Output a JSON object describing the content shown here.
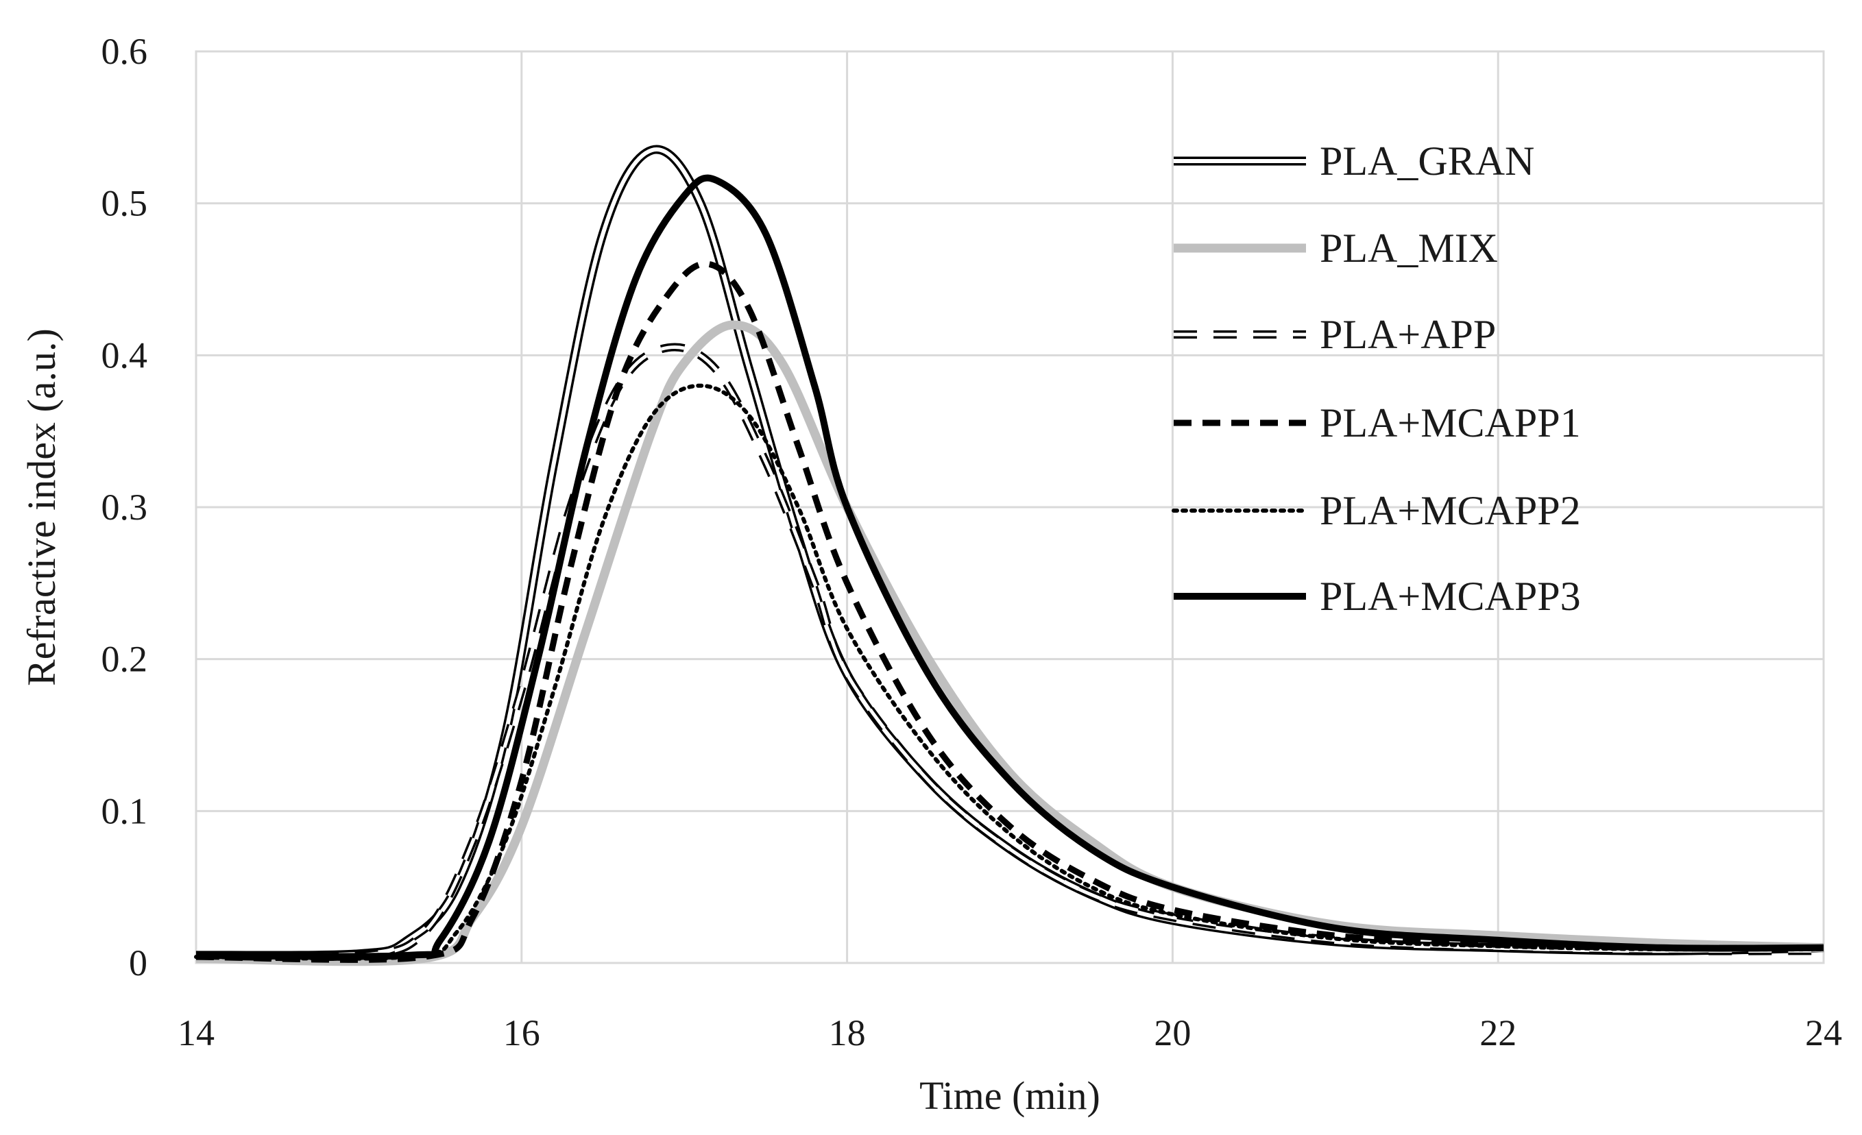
{
  "chart_data": {
    "type": "line",
    "title": "",
    "xlabel": "Time (min)",
    "ylabel": "Refractive index (a.u.)",
    "xlim": [
      14,
      24
    ],
    "ylim": [
      0,
      0.6
    ],
    "x_ticks": [
      14,
      16,
      18,
      20,
      22,
      24
    ],
    "y_ticks": [
      0,
      0.1,
      0.2,
      0.3,
      0.4,
      0.5,
      0.6
    ],
    "x_tick_labels": [
      "14",
      "16",
      "18",
      "20",
      "22",
      "24"
    ],
    "y_tick_labels": [
      "0",
      "0.1",
      "0.2",
      "0.3",
      "0.4",
      "0.5",
      "0.6"
    ],
    "grid": true,
    "legend_position": "top-right",
    "series": [
      {
        "name": "PLA_GRAN",
        "style": "double",
        "color": "#000000",
        "x": [
          14.0,
          15.0,
          15.3,
          15.6,
          15.9,
          16.2,
          16.5,
          16.8,
          17.1,
          17.4,
          17.7,
          18.0,
          18.5,
          19.0,
          19.5,
          20.0,
          21.0,
          22.0,
          23.0,
          24.0
        ],
        "y": [
          0.005,
          0.006,
          0.015,
          0.05,
          0.15,
          0.33,
          0.48,
          0.535,
          0.5,
          0.39,
          0.28,
          0.19,
          0.12,
          0.075,
          0.045,
          0.028,
          0.014,
          0.01,
          0.008,
          0.01
        ]
      },
      {
        "name": "PLA_MIX",
        "style": "gray",
        "color": "#bfbfbf",
        "x": [
          14.0,
          15.4,
          15.7,
          16.0,
          16.4,
          16.8,
          17.0,
          17.3,
          17.6,
          18.0,
          18.5,
          19.0,
          19.5,
          20.0,
          21.0,
          22.0,
          23.0,
          24.0
        ],
        "y": [
          0.003,
          0.003,
          0.03,
          0.09,
          0.22,
          0.35,
          0.395,
          0.42,
          0.395,
          0.3,
          0.2,
          0.125,
          0.08,
          0.05,
          0.025,
          0.018,
          0.013,
          0.01
        ]
      },
      {
        "name": "PLA+APP",
        "style": "double-dash",
        "color": "#000000",
        "x": [
          14.0,
          15.0,
          15.4,
          15.7,
          16.0,
          16.3,
          16.6,
          16.9,
          17.2,
          17.5,
          17.8,
          18.0,
          18.5,
          19.0,
          19.5,
          20.0,
          21.0,
          22.0,
          23.0,
          24.0
        ],
        "y": [
          0.005,
          0.005,
          0.02,
          0.08,
          0.18,
          0.3,
          0.38,
          0.405,
          0.39,
          0.33,
          0.25,
          0.19,
          0.12,
          0.075,
          0.045,
          0.03,
          0.015,
          0.01,
          0.008,
          0.008
        ]
      },
      {
        "name": "PLA+MCAPP1",
        "style": "dash",
        "color": "#000000",
        "x": [
          14.0,
          15.4,
          15.7,
          16.0,
          16.3,
          16.6,
          16.9,
          17.15,
          17.4,
          17.7,
          18.0,
          18.5,
          19.0,
          19.5,
          20.0,
          21.0,
          22.0,
          23.0,
          24.0
        ],
        "y": [
          0.004,
          0.004,
          0.03,
          0.12,
          0.26,
          0.38,
          0.44,
          0.46,
          0.43,
          0.34,
          0.25,
          0.15,
          0.09,
          0.055,
          0.035,
          0.018,
          0.012,
          0.01,
          0.01
        ]
      },
      {
        "name": "PLA+MCAPP2",
        "style": "dot",
        "color": "#000000",
        "x": [
          14.0,
          15.3,
          15.6,
          15.9,
          16.2,
          16.5,
          16.8,
          17.1,
          17.4,
          17.7,
          18.0,
          18.5,
          19.0,
          19.5,
          20.0,
          21.0,
          22.0,
          23.0,
          24.0
        ],
        "y": [
          0.004,
          0.004,
          0.02,
          0.08,
          0.18,
          0.29,
          0.36,
          0.38,
          0.36,
          0.3,
          0.22,
          0.14,
          0.085,
          0.05,
          0.032,
          0.016,
          0.011,
          0.009,
          0.009
        ]
      },
      {
        "name": "PLA+MCAPP3",
        "style": "bold",
        "color": "#000000",
        "x": [
          14.0,
          15.3,
          15.5,
          15.8,
          16.1,
          16.4,
          16.7,
          17.0,
          17.2,
          17.5,
          17.8,
          18.0,
          18.5,
          19.0,
          19.5,
          20.0,
          21.0,
          22.0,
          23.0,
          24.0
        ],
        "y": [
          0.005,
          0.005,
          0.015,
          0.08,
          0.2,
          0.34,
          0.45,
          0.505,
          0.515,
          0.48,
          0.38,
          0.3,
          0.19,
          0.12,
          0.075,
          0.05,
          0.023,
          0.015,
          0.01,
          0.01
        ]
      }
    ]
  }
}
